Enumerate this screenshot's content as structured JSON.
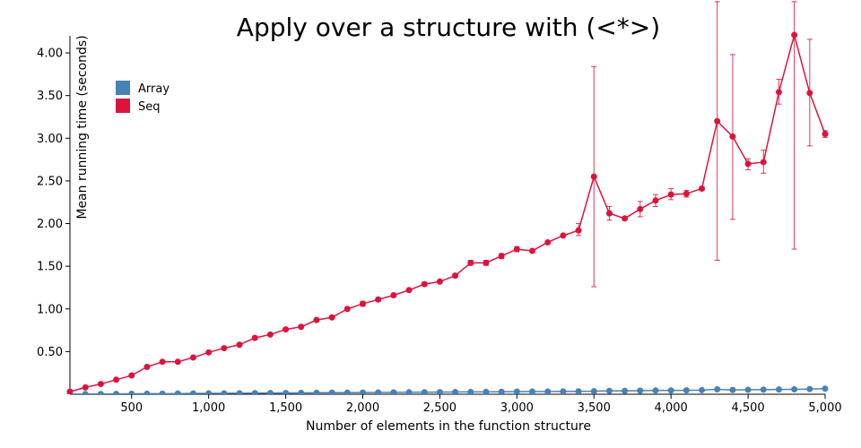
{
  "chart_data": {
    "type": "line",
    "title": "Apply over a structure with (<*>)",
    "xlabel": "Number of elements in the function structure",
    "ylabel": "Mean running time (seconds)",
    "xlim": [
      100,
      5000
    ],
    "ylim": [
      0,
      4.2
    ],
    "x_ticks": [
      500,
      1000,
      1500,
      2000,
      2500,
      3000,
      3500,
      4000,
      4500,
      5000
    ],
    "x_tick_labels": [
      "500",
      "1,000",
      "1,500",
      "2,000",
      "2,500",
      "3,000",
      "3,500",
      "4,000",
      "4,500",
      "5,000"
    ],
    "y_ticks": [
      0.5,
      1.0,
      1.5,
      2.0,
      2.5,
      3.0,
      3.5,
      4.0
    ],
    "y_tick_labels": [
      "0.50",
      "1.00",
      "1.50",
      "2.00",
      "2.50",
      "3.00",
      "3.50",
      "4.00"
    ],
    "legend_position": "top-left",
    "x": [
      100,
      200,
      300,
      400,
      500,
      600,
      700,
      800,
      900,
      1000,
      1100,
      1200,
      1300,
      1400,
      1500,
      1600,
      1700,
      1800,
      1900,
      2000,
      2100,
      2200,
      2300,
      2400,
      2500,
      2600,
      2700,
      2800,
      2900,
      3000,
      3100,
      3200,
      3300,
      3400,
      3500,
      3600,
      3700,
      3800,
      3900,
      4000,
      4100,
      4200,
      4300,
      4400,
      4500,
      4600,
      4700,
      4800,
      4900,
      5000
    ],
    "series": [
      {
        "name": "Array",
        "color": "#4682b4",
        "values": [
          0.001,
          0.002,
          0.003,
          0.004,
          0.005,
          0.006,
          0.007,
          0.008,
          0.009,
          0.01,
          0.011,
          0.012,
          0.013,
          0.014,
          0.015,
          0.016,
          0.017,
          0.018,
          0.019,
          0.02,
          0.021,
          0.022,
          0.023,
          0.024,
          0.025,
          0.026,
          0.027,
          0.028,
          0.029,
          0.03,
          0.031,
          0.032,
          0.033,
          0.034,
          0.035,
          0.04,
          0.04,
          0.042,
          0.044,
          0.045,
          0.046,
          0.048,
          0.058,
          0.05,
          0.052,
          0.054,
          0.056,
          0.058,
          0.06,
          0.065
        ],
        "err_low": null,
        "err_high": null
      },
      {
        "name": "Seq",
        "color": "#dc143c",
        "values": [
          0.03,
          0.08,
          0.12,
          0.17,
          0.22,
          0.32,
          0.38,
          0.38,
          0.43,
          0.49,
          0.54,
          0.58,
          0.66,
          0.7,
          0.76,
          0.79,
          0.87,
          0.9,
          1.0,
          1.06,
          1.11,
          1.16,
          1.22,
          1.29,
          1.32,
          1.39,
          1.54,
          1.54,
          1.62,
          1.7,
          1.68,
          1.78,
          1.86,
          1.92,
          2.55,
          2.12,
          2.06,
          2.17,
          2.27,
          2.34,
          2.35,
          2.41,
          3.2,
          3.02,
          2.7,
          2.72,
          3.54,
          4.21,
          3.53,
          3.05
        ],
        "err_low": [
          0.02,
          0.07,
          0.11,
          0.16,
          0.21,
          0.31,
          0.37,
          0.37,
          0.42,
          0.48,
          0.53,
          0.57,
          0.65,
          0.69,
          0.75,
          0.78,
          0.86,
          0.89,
          0.98,
          1.03,
          1.09,
          1.14,
          1.21,
          1.27,
          1.31,
          1.37,
          1.51,
          1.51,
          1.59,
          1.67,
          1.67,
          1.77,
          1.85,
          1.86,
          1.26,
          2.04,
          2.04,
          2.08,
          2.2,
          2.28,
          2.31,
          2.39,
          1.57,
          2.05,
          2.63,
          2.59,
          3.4,
          1.7,
          2.91,
          3.01
        ],
        "err_high": [
          0.04,
          0.09,
          0.13,
          0.18,
          0.23,
          0.33,
          0.39,
          0.39,
          0.44,
          0.5,
          0.55,
          0.59,
          0.67,
          0.71,
          0.77,
          0.8,
          0.88,
          0.91,
          1.02,
          1.09,
          1.13,
          1.18,
          1.23,
          1.31,
          1.33,
          1.41,
          1.57,
          1.57,
          1.65,
          1.73,
          1.69,
          1.79,
          1.87,
          2.0,
          3.84,
          2.2,
          2.08,
          2.26,
          2.34,
          2.41,
          2.39,
          2.43,
          4.6,
          3.98,
          2.76,
          2.86,
          3.69,
          4.6,
          4.16,
          3.09
        ]
      }
    ]
  }
}
